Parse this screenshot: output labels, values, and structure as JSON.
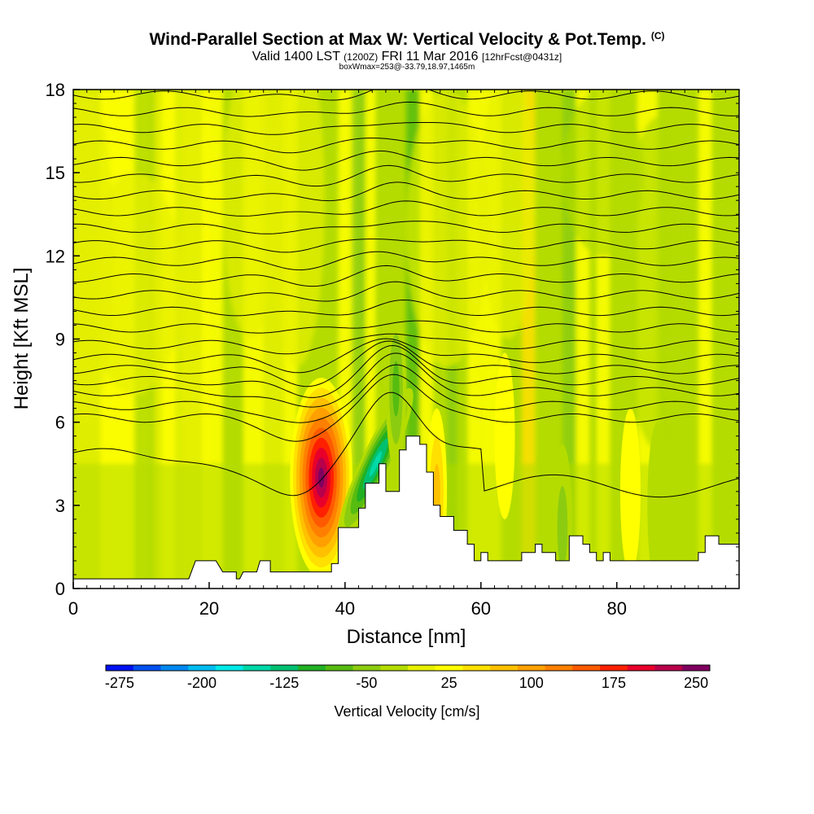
{
  "chart_data": {
    "type": "heatmap",
    "title": "Wind-Parallel Section at Max W: Vertical Velocity & Pot.Temp.",
    "title_suffix": "(C)",
    "subtitle_main": "Valid 1400 LST",
    "subtitle_z": "(1200Z)",
    "subtitle_date": "FRI 11 Mar 2016",
    "subtitle_fcst": "[12hrFcst@0431z]",
    "sub_subtitle": "boxWmax=253@-33.79,18.97,1465m",
    "xlabel": "Distance [nm]",
    "ylabel": "Height [Kft MSL]",
    "xlim": [
      0,
      98
    ],
    "ylim": [
      0,
      18
    ],
    "x_ticks": [
      "0",
      "20",
      "40",
      "60",
      "80"
    ],
    "y_ticks": [
      "0",
      "3",
      "6",
      "9",
      "12",
      "15",
      "18"
    ],
    "colorbar": {
      "title": "Vertical Velocity [cm/s]",
      "labels": [
        "-275",
        "-200",
        "-125",
        "-50",
        "25",
        "100",
        "175",
        "250"
      ],
      "colors": [
        "#0010f0",
        "#0050f0",
        "#0088f0",
        "#00bcf0",
        "#00e8e8",
        "#00d8a8",
        "#00c070",
        "#22b022",
        "#56bc10",
        "#8ccc10",
        "#b4dc00",
        "#e6f000",
        "#ffff00",
        "#ffe000",
        "#ffc000",
        "#ffa000",
        "#ff8000",
        "#ff5a00",
        "#ff2000",
        "#e8002a",
        "#b8004a",
        "#800060"
      ]
    },
    "terrain": [
      [
        0,
        0.35
      ],
      [
        17,
        0.35
      ],
      [
        18,
        1.0
      ],
      [
        21,
        1.0
      ],
      [
        22,
        0.6
      ],
      [
        24,
        0.6
      ],
      [
        24,
        0.35
      ],
      [
        24.5,
        0.35
      ],
      [
        25,
        0.6
      ],
      [
        27,
        0.6
      ],
      [
        27.5,
        1.0
      ],
      [
        29,
        1.0
      ],
      [
        29,
        0.6
      ],
      [
        38,
        0.6
      ],
      [
        38,
        0.9
      ],
      [
        39,
        0.9
      ],
      [
        39,
        2.2
      ],
      [
        42,
        2.2
      ],
      [
        42,
        2.9
      ],
      [
        43,
        2.9
      ],
      [
        43,
        3.8
      ],
      [
        45,
        3.8
      ],
      [
        45,
        4.5
      ],
      [
        46,
        4.5
      ],
      [
        46,
        3.5
      ],
      [
        48,
        3.5
      ],
      [
        48,
        5.0
      ],
      [
        49,
        5.0
      ],
      [
        49,
        5.5
      ],
      [
        51,
        5.5
      ],
      [
        51,
        5.2
      ],
      [
        52,
        5.2
      ],
      [
        52,
        4.2
      ],
      [
        53,
        4.2
      ],
      [
        53,
        3.0
      ],
      [
        54,
        3.0
      ],
      [
        54,
        2.6
      ],
      [
        56,
        2.6
      ],
      [
        56,
        2.1
      ],
      [
        58,
        2.1
      ],
      [
        58,
        1.6
      ],
      [
        59,
        1.6
      ],
      [
        59,
        1.0
      ],
      [
        60,
        1.0
      ],
      [
        60,
        1.3
      ],
      [
        61,
        1.3
      ],
      [
        61,
        1.0
      ],
      [
        66,
        1.0
      ],
      [
        66,
        1.3
      ],
      [
        68,
        1.3
      ],
      [
        68,
        1.6
      ],
      [
        69,
        1.6
      ],
      [
        69,
        1.3
      ],
      [
        71,
        1.3
      ],
      [
        71,
        1.0
      ],
      [
        73,
        1.0
      ],
      [
        73,
        1.9
      ],
      [
        75,
        1.9
      ],
      [
        75,
        1.6
      ],
      [
        76,
        1.6
      ],
      [
        76,
        1.3
      ],
      [
        77,
        1.3
      ],
      [
        77,
        1.0
      ],
      [
        78,
        1.0
      ],
      [
        78,
        1.3
      ],
      [
        79,
        1.3
      ],
      [
        79,
        1.0
      ],
      [
        92,
        1.0
      ],
      [
        92,
        1.3
      ],
      [
        93,
        1.3
      ],
      [
        93,
        1.9
      ],
      [
        95,
        1.9
      ],
      [
        95,
        1.6
      ],
      [
        98,
        1.6
      ]
    ],
    "velocity_features": [
      {
        "name": "updraft-core",
        "x": 36.5,
        "y": 4.0,
        "value": 253
      },
      {
        "name": "downdraft-core",
        "x": 44.5,
        "y": 4.5,
        "value": -150
      },
      {
        "name": "updraft-lee-1",
        "x": 53.5,
        "y": 3.5,
        "value": 90
      },
      {
        "name": "updraft-lee-2",
        "x": 63.5,
        "y": 5.5,
        "value": 45
      },
      {
        "name": "updraft-lee-3",
        "x": 82,
        "y": 3.5,
        "value": 45
      },
      {
        "name": "downdraft-lee-1",
        "x": 47.5,
        "y": 7.2,
        "value": -80
      },
      {
        "name": "downdraft-lee-2",
        "x": 72,
        "y": 2.2,
        "value": -55
      },
      {
        "name": "downdraft-lee-3",
        "x": 86,
        "y": 3.0,
        "value": -45
      }
    ],
    "theta_isentropes": [
      {
        "level": 0,
        "y_base": 4.9
      },
      {
        "level": 1,
        "y_base": 6.15
      },
      {
        "level": 2,
        "y_base": 6.6
      },
      {
        "level": 3,
        "y_base": 7.1
      },
      {
        "level": 4,
        "y_base": 7.5
      },
      {
        "level": 5,
        "y_base": 7.9
      },
      {
        "level": 6,
        "y_base": 8.3
      },
      {
        "level": 7,
        "y_base": 8.8
      },
      {
        "level": 8,
        "y_base": 9.4
      },
      {
        "level": 9,
        "y_base": 10.0
      },
      {
        "level": 10,
        "y_base": 10.6
      },
      {
        "level": 11,
        "y_base": 11.2
      },
      {
        "level": 12,
        "y_base": 11.8
      },
      {
        "level": 13,
        "y_base": 12.4
      },
      {
        "level": 14,
        "y_base": 13.0
      },
      {
        "level": 15,
        "y_base": 13.6
      },
      {
        "level": 16,
        "y_base": 14.2
      },
      {
        "level": 17,
        "y_base": 14.8
      },
      {
        "level": 18,
        "y_base": 15.4
      },
      {
        "level": 19,
        "y_base": 16.0
      },
      {
        "level": 20,
        "y_base": 16.6
      },
      {
        "level": 21,
        "y_base": 17.2
      },
      {
        "level": 22,
        "y_base": 17.8
      }
    ]
  }
}
